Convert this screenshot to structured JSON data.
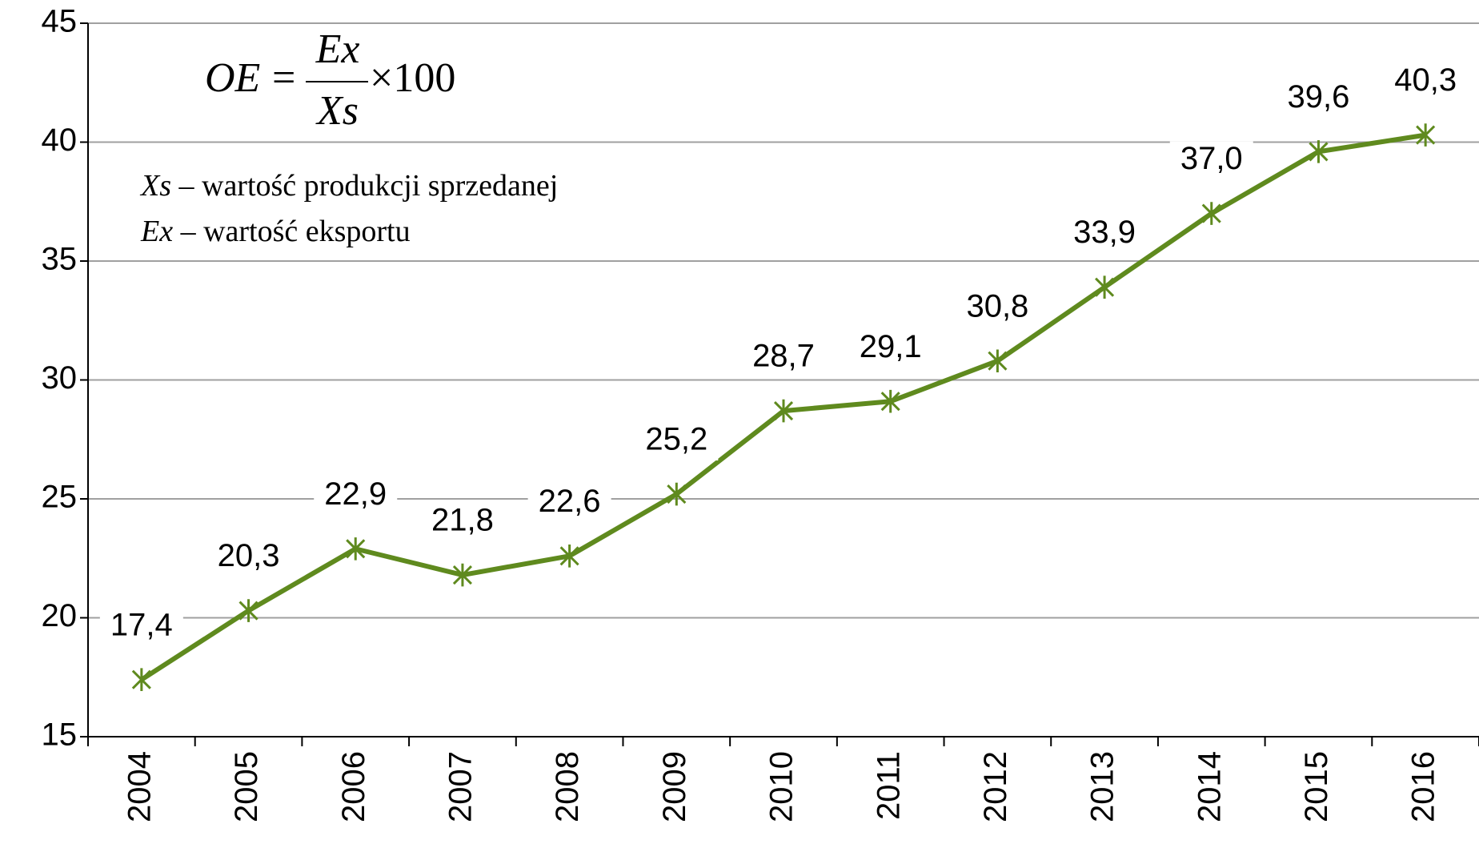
{
  "chart_data": {
    "type": "line",
    "categories": [
      "2004",
      "2005",
      "2006",
      "2007",
      "2008",
      "2009",
      "2010",
      "2011",
      "2012",
      "2013",
      "2014",
      "2015",
      "2016"
    ],
    "values": [
      17.4,
      20.3,
      22.9,
      21.8,
      22.6,
      25.2,
      28.7,
      29.1,
      30.8,
      33.9,
      37.0,
      39.6,
      40.3
    ],
    "value_labels": [
      "17,4",
      "20,3",
      "22,9",
      "21,8",
      "22,6",
      "25,2",
      "28,7",
      "29,1",
      "30,8",
      "33,9",
      "37,0",
      "39,6",
      "40,3"
    ],
    "color": "#5f8a1e",
    "ylim": [
      15,
      45
    ],
    "yticks": [
      15,
      20,
      25,
      30,
      35,
      40,
      45
    ],
    "grid": true,
    "formula": {
      "left": "OE",
      "equals": "=",
      "numerator": "Ex",
      "denominator": "Xs",
      "factor": "×100"
    },
    "annotations": [
      {
        "symbol": "Xs",
        "text": " – wartość produkcji sprzedanej"
      },
      {
        "symbol": "Ex",
        "text": " – wartość eksportu"
      }
    ]
  }
}
